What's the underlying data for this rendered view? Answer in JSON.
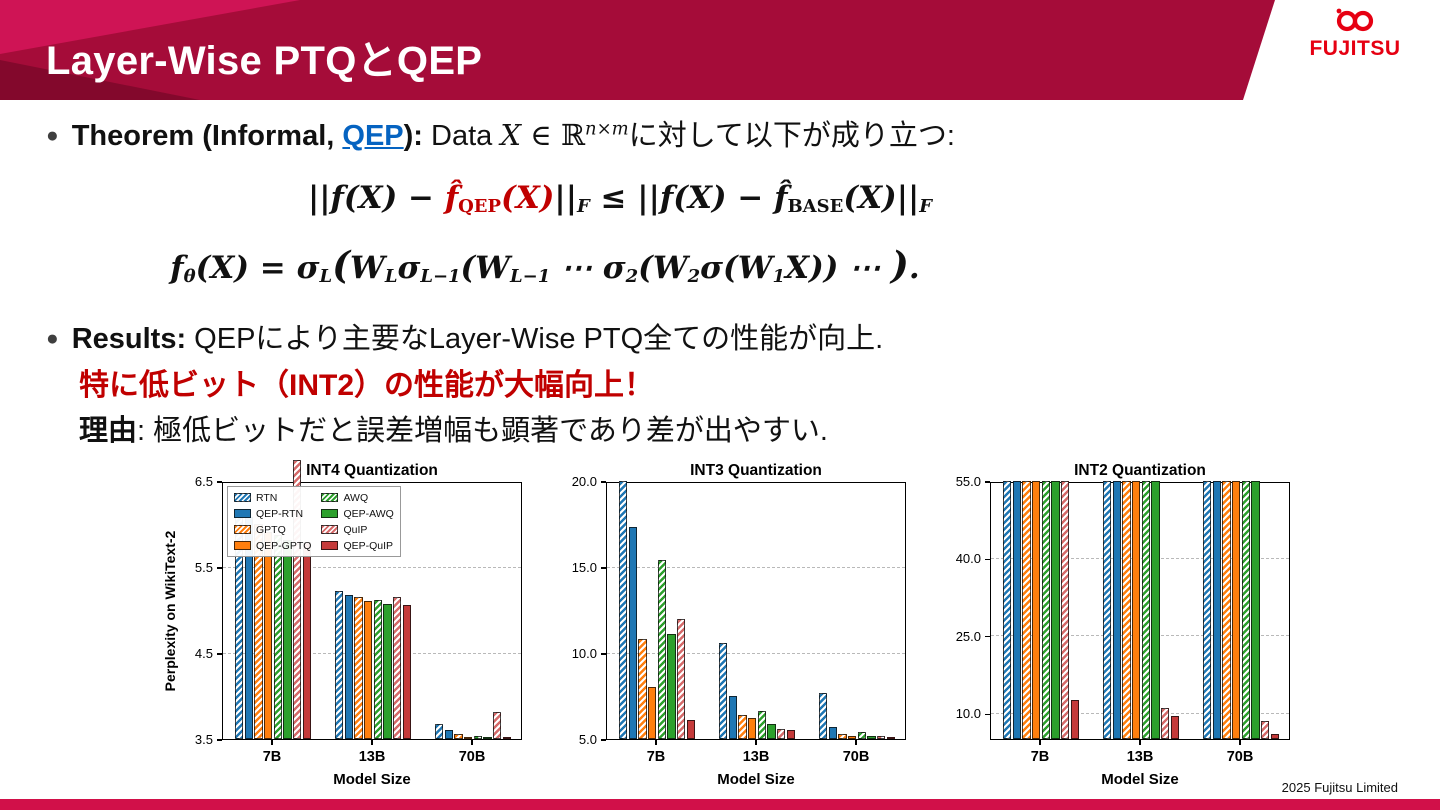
{
  "colors": {
    "header_red": "#a50c39",
    "header_accent_light": "#cf1455",
    "header_accent_dark": "#83082c",
    "bottom_bar_red": "#d11049",
    "fujitsu_red": "#e60012",
    "highlight_red": "#c00000",
    "link_blue": "#0563c1"
  },
  "header": {
    "title": "Layer-Wise PTQとQEP"
  },
  "logo": {
    "wordmark": "FUJITSU"
  },
  "bullet_char": "●",
  "theorem": {
    "label_bold": "Theorem (Informal, ",
    "link": "QEP",
    "label_close": "): ",
    "data_word": "Data ",
    "var": "X",
    "element_of": " ∈ ℝ",
    "superscript": "n×m",
    "tail": "に対して以下が成り立つ:"
  },
  "formula1": {
    "p1": "||f(X) − ",
    "p2": "f̂",
    "p3": "QEP",
    "p4": "(X)",
    "p5": "||",
    "p6": "F",
    "p7": " ≤ ||f(X) − ",
    "p8": "f̂",
    "p9": "BASE",
    "p10": "(X)||",
    "p11": "F"
  },
  "formula2": {
    "p1": "f",
    "p2": "θ",
    "p3": "(X) = σ",
    "p4": "L",
    "p5": "(",
    "p6": "W",
    "p7": "L",
    "p8": "σ",
    "p9": "L−1",
    "p10": "(W",
    "p11": "L−1",
    "p12": " ⋯ σ",
    "p13": "2",
    "p14": "(W",
    "p15": "2",
    "p16": "σ(W",
    "p17": "1",
    "p18": "X)) ⋯ ",
    "p19": ")",
    "p20": "."
  },
  "results": {
    "label_bold": "Results: ",
    "line1": "QEPにより主要なLayer-Wise PTQ全ての性能が向上.",
    "line2_red": "特に低ビット（INT2）の性能が大幅向上！",
    "reason_bold": "理由",
    "reason_rest": ": 極低ビットだと誤差増幅も顕著であり差が出やすい."
  },
  "footer": {
    "copyright": "2025 Fujitsu Limited"
  },
  "chart_data": [
    {
      "type": "bar",
      "title": "INT4 Quantization",
      "xlabel": "Model Size",
      "ylabel": "Perplexity on WikiText-2",
      "categories": [
        "7B",
        "13B",
        "70B"
      ],
      "ylim": [
        3.5,
        6.5
      ],
      "yticks": [
        3.5,
        4.5,
        5.5,
        6.5
      ],
      "grid": "dashed-horizontal",
      "legend": true,
      "legend_position": "upper-left",
      "series": [
        {
          "name": "RTN",
          "color": "#1f77b4",
          "hatch": true,
          "values": [
            6.13,
            5.22,
            3.67
          ]
        },
        {
          "name": "QEP-RTN",
          "color": "#1f77b4",
          "hatch": false,
          "values": [
            6.08,
            5.18,
            3.6
          ]
        },
        {
          "name": "GPTQ",
          "color": "#ff7f0e",
          "hatch": true,
          "values": [
            6.0,
            5.15,
            3.56
          ]
        },
        {
          "name": "QEP-GPTQ",
          "color": "#ff7f0e",
          "hatch": false,
          "values": [
            5.91,
            5.11,
            3.52
          ]
        },
        {
          "name": "AWQ",
          "color": "#2ca02c",
          "hatch": true,
          "values": [
            5.87,
            5.12,
            3.53
          ]
        },
        {
          "name": "QEP-AWQ",
          "color": "#2ca02c",
          "hatch": false,
          "values": [
            5.81,
            5.07,
            3.5
          ]
        },
        {
          "name": "QuIP",
          "color": "#d66a6a",
          "hatch": true,
          "values": [
            6.75,
            5.15,
            3.81
          ]
        },
        {
          "name": "QEP-QuIP",
          "color": "#c53a3a",
          "hatch": false,
          "values": [
            5.79,
            5.06,
            3.52
          ]
        }
      ]
    },
    {
      "type": "bar",
      "title": "INT3 Quantization",
      "xlabel": "Model Size",
      "ylabel": "",
      "categories": [
        "7B",
        "13B",
        "70B"
      ],
      "ylim": [
        5,
        20
      ],
      "yticks": [
        5,
        10,
        15,
        20
      ],
      "grid": "dashed-horizontal",
      "legend": false,
      "series": [
        {
          "name": "RTN",
          "color": "#1f77b4",
          "hatch": true,
          "values": [
            20.0,
            10.6,
            7.7
          ]
        },
        {
          "name": "QEP-RTN",
          "color": "#1f77b4",
          "hatch": false,
          "values": [
            17.3,
            7.5,
            5.7
          ]
        },
        {
          "name": "GPTQ",
          "color": "#ff7f0e",
          "hatch": true,
          "values": [
            10.8,
            6.4,
            5.3
          ]
        },
        {
          "name": "QEP-GPTQ",
          "color": "#ff7f0e",
          "hatch": false,
          "values": [
            8.0,
            6.2,
            5.2
          ]
        },
        {
          "name": "AWQ",
          "color": "#2ca02c",
          "hatch": true,
          "values": [
            15.4,
            6.6,
            5.4
          ]
        },
        {
          "name": "QEP-AWQ",
          "color": "#2ca02c",
          "hatch": false,
          "values": [
            11.1,
            5.9,
            5.2
          ]
        },
        {
          "name": "QuIP",
          "color": "#d66a6a",
          "hatch": true,
          "values": [
            12.0,
            5.6,
            5.15
          ]
        },
        {
          "name": "QEP-QuIP",
          "color": "#c53a3a",
          "hatch": false,
          "values": [
            6.1,
            5.5,
            5.1
          ]
        }
      ]
    },
    {
      "type": "bar",
      "title": "INT2 Quantization",
      "xlabel": "Model Size",
      "ylabel": "",
      "categories": [
        "7B",
        "13B",
        "70B"
      ],
      "ylim": [
        5,
        55
      ],
      "yticks": [
        10,
        25,
        40,
        55
      ],
      "grid": "dashed-horizontal",
      "legend": false,
      "series": [
        {
          "name": "RTN",
          "color": "#1f77b4",
          "hatch": true,
          "values": [
            55,
            55,
            55
          ]
        },
        {
          "name": "QEP-RTN",
          "color": "#1f77b4",
          "hatch": false,
          "values": [
            55,
            55,
            55
          ]
        },
        {
          "name": "GPTQ",
          "color": "#ff7f0e",
          "hatch": true,
          "values": [
            55,
            55,
            55
          ]
        },
        {
          "name": "QEP-GPTQ",
          "color": "#ff7f0e",
          "hatch": false,
          "values": [
            55,
            55,
            55
          ]
        },
        {
          "name": "AWQ",
          "color": "#2ca02c",
          "hatch": true,
          "values": [
            55,
            55,
            55
          ]
        },
        {
          "name": "QEP-AWQ",
          "color": "#2ca02c",
          "hatch": false,
          "values": [
            55,
            55,
            55
          ]
        },
        {
          "name": "QuIP",
          "color": "#d66a6a",
          "hatch": true,
          "values": [
            55,
            11.0,
            8.5
          ]
        },
        {
          "name": "QEP-QuIP",
          "color": "#c53a3a",
          "hatch": false,
          "values": [
            12.5,
            9.5,
            6.0
          ]
        }
      ]
    }
  ]
}
